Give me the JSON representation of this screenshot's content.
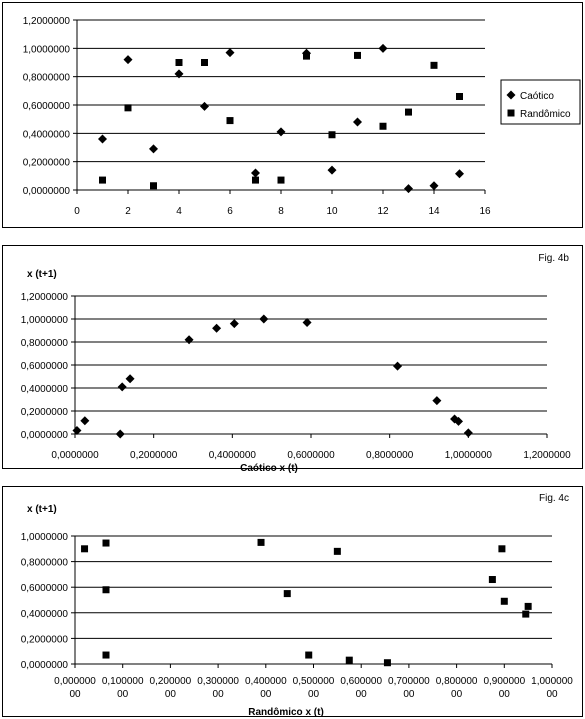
{
  "chart_data": [
    {
      "type": "scatter",
      "figure_label": "",
      "ylabel": "",
      "xlabel": "",
      "xlim": [
        0,
        16
      ],
      "ylim": [
        0,
        1.2
      ],
      "x_ticks": [
        "0",
        "2",
        "4",
        "6",
        "8",
        "10",
        "12",
        "14",
        "16"
      ],
      "y_ticks": [
        "0,0000000",
        "0,2000000",
        "0,4000000",
        "0,6000000",
        "0,8000000",
        "1,0000000",
        "1,2000000"
      ],
      "grid": "horizontal",
      "legend_position": "right",
      "series": [
        {
          "name": "Caótico",
          "marker": "diamond",
          "x": [
            1,
            2,
            3,
            4,
            5,
            6,
            7,
            8,
            9,
            10,
            11,
            12,
            13,
            14,
            15
          ],
          "y": [
            0.36,
            0.92,
            0.29,
            0.82,
            0.59,
            0.97,
            0.12,
            0.41,
            0.965,
            0.14,
            0.48,
            1.0,
            0.01,
            0.03,
            0.115
          ]
        },
        {
          "name": "Randômico",
          "marker": "square",
          "x": [
            1,
            2,
            3,
            4,
            5,
            6,
            7,
            8,
            9,
            10,
            11,
            12,
            13,
            14,
            15
          ],
          "y": [
            0.07,
            0.58,
            0.03,
            0.9,
            0.9,
            0.49,
            0.07,
            0.07,
            0.945,
            0.39,
            0.95,
            0.45,
            0.55,
            0.88,
            0.66
          ]
        }
      ]
    },
    {
      "type": "scatter",
      "figure_label": "Fig. 4b",
      "ylabel": "x (t+1)",
      "xlabel": "Caótico x (t)",
      "xlim": [
        0,
        1.2
      ],
      "ylim": [
        0,
        1.2
      ],
      "x_ticks": [
        "0,0000000",
        "0,2000000",
        "0,4000000",
        "0,6000000",
        "0,8000000",
        "1,0000000",
        "1,2000000"
      ],
      "y_ticks": [
        "0,0000000",
        "0,2000000",
        "0,4000000",
        "0,6000000",
        "0,8000000",
        "1,0000000",
        "1,2000000"
      ],
      "grid": "horizontal",
      "series": [
        {
          "name": "",
          "marker": "diamond",
          "x": [
            0.005,
            0.025,
            0.115,
            0.12,
            0.14,
            0.29,
            0.36,
            0.405,
            0.48,
            0.59,
            0.82,
            0.92,
            0.965,
            0.975,
            1.0
          ],
          "y": [
            0.03,
            0.115,
            0.0,
            0.41,
            0.48,
            0.82,
            0.92,
            0.96,
            1.0,
            0.97,
            0.59,
            0.29,
            0.13,
            0.11,
            0.01
          ]
        }
      ]
    },
    {
      "type": "scatter",
      "figure_label": "Fig. 4c",
      "ylabel": "x (t+1)",
      "xlabel": "Randômico x (t)",
      "xlim": [
        0,
        1.0
      ],
      "ylim": [
        0,
        1.0
      ],
      "x_ticks": [
        "0,00000000",
        "0,10000000",
        "0,20000000",
        "0,30000000",
        "0,40000000",
        "0,50000000",
        "0,60000000",
        "0,70000000",
        "0,80000000",
        "0,90000000",
        "1,00000000"
      ],
      "y_ticks": [
        "0,0000000",
        "0,2000000",
        "0,4000000",
        "0,6000000",
        "0,8000000",
        "1,0000000"
      ],
      "grid": "horizontal",
      "series": [
        {
          "name": "",
          "marker": "square",
          "x": [
            0.02,
            0.065,
            0.065,
            0.065,
            0.39,
            0.445,
            0.49,
            0.55,
            0.575,
            0.655,
            0.875,
            0.895,
            0.9,
            0.945,
            0.95
          ],
          "y": [
            0.9,
            0.945,
            0.58,
            0.07,
            0.95,
            0.55,
            0.07,
            0.88,
            0.03,
            0.01,
            0.66,
            0.9,
            0.49,
            0.39,
            0.45
          ]
        }
      ]
    }
  ]
}
